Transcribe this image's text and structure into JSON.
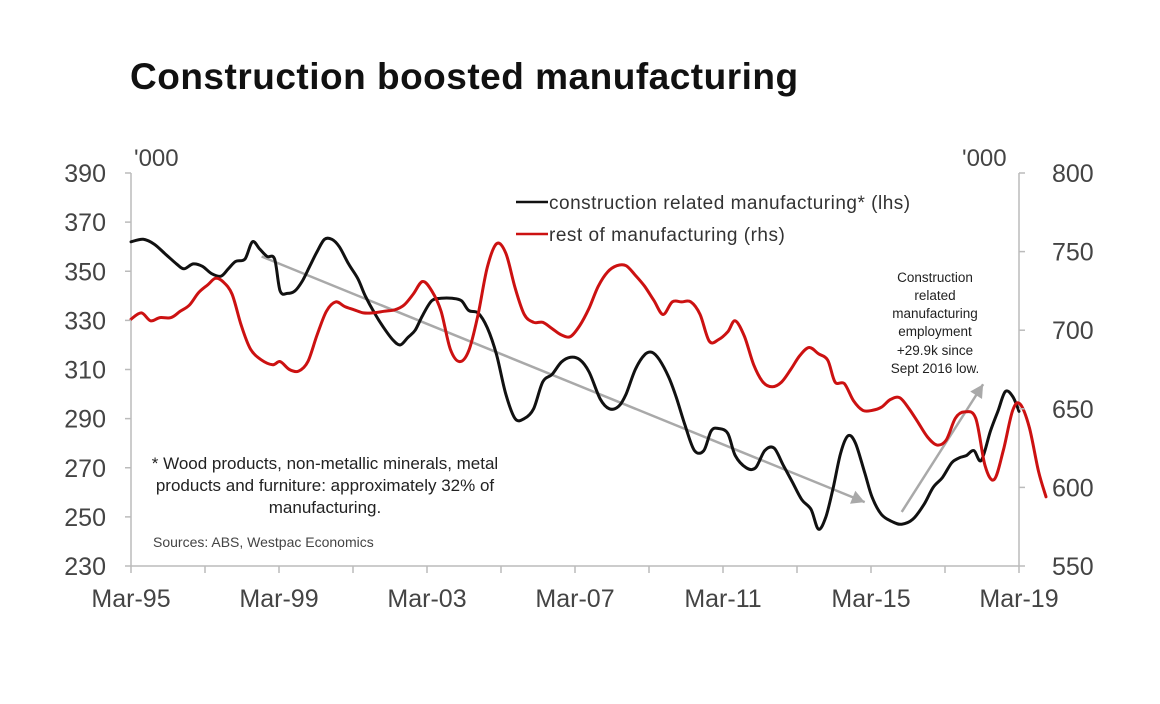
{
  "chart_data": {
    "type": "line",
    "title": "Construction boosted manufacturing",
    "y_left_unit": "'000",
    "y_right_unit": "'000",
    "ylim_left": [
      230,
      390
    ],
    "ylim_right": [
      550,
      800
    ],
    "yticks_left": [
      "230",
      "250",
      "270",
      "290",
      "310",
      "330",
      "350",
      "370",
      "390"
    ],
    "yticks_right": [
      "550",
      "600",
      "650",
      "700",
      "750",
      "800"
    ],
    "xlim": [
      1995.17,
      2019.17
    ],
    "xticks": [
      {
        "label": "Mar-95",
        "x": 1995.17
      },
      {
        "label": "Mar-99",
        "x": 1999.17
      },
      {
        "label": "Mar-03",
        "x": 2003.17
      },
      {
        "label": "Mar-07",
        "x": 2007.17
      },
      {
        "label": "Mar-11",
        "x": 2011.17
      },
      {
        "label": "Mar-15",
        "x": 2015.17
      },
      {
        "label": "Mar-19",
        "x": 2019.17
      }
    ],
    "legend_position": "top-right",
    "series": [
      {
        "name": "construction related manufacturing* (lhs)",
        "axis": "left",
        "color": "#111111",
        "points": [
          [
            1995.17,
            362
          ],
          [
            1995.5,
            363
          ],
          [
            1995.8,
            361
          ],
          [
            1996.1,
            357
          ],
          [
            1996.4,
            353
          ],
          [
            1996.6,
            351
          ],
          [
            1996.85,
            353
          ],
          [
            1997.1,
            352
          ],
          [
            1997.35,
            349
          ],
          [
            1997.6,
            348
          ],
          [
            1997.8,
            351
          ],
          [
            1998.0,
            354
          ],
          [
            1998.25,
            355
          ],
          [
            1998.45,
            362
          ],
          [
            1998.65,
            359
          ],
          [
            1998.85,
            356
          ],
          [
            1999.05,
            355
          ],
          [
            1999.2,
            342
          ],
          [
            1999.4,
            341
          ],
          [
            1999.6,
            342
          ],
          [
            1999.8,
            346
          ],
          [
            2000.0,
            352
          ],
          [
            2000.2,
            358
          ],
          [
            2000.4,
            363
          ],
          [
            2000.6,
            363
          ],
          [
            2000.8,
            360
          ],
          [
            2001.05,
            353
          ],
          [
            2001.3,
            347
          ],
          [
            2001.5,
            340
          ],
          [
            2001.75,
            333
          ],
          [
            2002.0,
            327
          ],
          [
            2002.25,
            322
          ],
          [
            2002.45,
            320
          ],
          [
            2002.65,
            323
          ],
          [
            2002.85,
            326
          ],
          [
            2003.05,
            332
          ],
          [
            2003.3,
            338
          ],
          [
            2003.55,
            339
          ],
          [
            2003.85,
            339
          ],
          [
            2004.1,
            338
          ],
          [
            2004.3,
            334
          ],
          [
            2004.55,
            333
          ],
          [
            2004.8,
            327
          ],
          [
            2005.05,
            316
          ],
          [
            2005.3,
            300
          ],
          [
            2005.55,
            290
          ],
          [
            2005.8,
            290
          ],
          [
            2006.05,
            294
          ],
          [
            2006.3,
            305
          ],
          [
            2006.55,
            308
          ],
          [
            2006.8,
            313
          ],
          [
            2007.05,
            315
          ],
          [
            2007.3,
            314
          ],
          [
            2007.55,
            309
          ],
          [
            2007.85,
            298
          ],
          [
            2008.1,
            294
          ],
          [
            2008.35,
            295
          ],
          [
            2008.55,
            300
          ],
          [
            2008.8,
            310
          ],
          [
            2009.05,
            316
          ],
          [
            2009.25,
            317
          ],
          [
            2009.45,
            314
          ],
          [
            2009.7,
            307
          ],
          [
            2009.9,
            299
          ],
          [
            2010.15,
            287
          ],
          [
            2010.4,
            277
          ],
          [
            2010.65,
            277
          ],
          [
            2010.85,
            285
          ],
          [
            2011.05,
            286
          ],
          [
            2011.3,
            284
          ],
          [
            2011.5,
            275
          ],
          [
            2011.8,
            270
          ],
          [
            2012.05,
            270
          ],
          [
            2012.3,
            277
          ],
          [
            2012.55,
            278
          ],
          [
            2012.8,
            271
          ],
          [
            2013.05,
            264
          ],
          [
            2013.3,
            257
          ],
          [
            2013.55,
            253
          ],
          [
            2013.75,
            245
          ],
          [
            2013.95,
            250
          ],
          [
            2014.15,
            262
          ],
          [
            2014.35,
            276
          ],
          [
            2014.55,
            283
          ],
          [
            2014.75,
            280
          ],
          [
            2015.0,
            268
          ],
          [
            2015.2,
            258
          ],
          [
            2015.45,
            251
          ],
          [
            2015.75,
            248
          ],
          [
            2016.0,
            247
          ],
          [
            2016.3,
            249
          ],
          [
            2016.6,
            255
          ],
          [
            2016.85,
            262
          ],
          [
            2017.1,
            266
          ],
          [
            2017.35,
            272
          ],
          [
            2017.55,
            274
          ],
          [
            2017.75,
            275
          ],
          [
            2017.95,
            277
          ],
          [
            2018.15,
            273
          ],
          [
            2018.4,
            285
          ],
          [
            2018.6,
            293
          ],
          [
            2018.8,
            301
          ],
          [
            2019.0,
            299
          ],
          [
            2019.17,
            293
          ]
        ]
      },
      {
        "name": "rest of manufacturing  (rhs)",
        "axis": "right",
        "color": "#cc1111",
        "points": [
          [
            1995.17,
            707
          ],
          [
            1995.45,
            711
          ],
          [
            1995.7,
            706
          ],
          [
            1995.95,
            708
          ],
          [
            1996.25,
            708
          ],
          [
            1996.5,
            712
          ],
          [
            1996.75,
            716
          ],
          [
            1997.0,
            724
          ],
          [
            1997.25,
            729
          ],
          [
            1997.45,
            733
          ],
          [
            1997.65,
            731
          ],
          [
            1997.9,
            723
          ],
          [
            1998.15,
            703
          ],
          [
            1998.4,
            688
          ],
          [
            1998.7,
            681
          ],
          [
            1999.0,
            678
          ],
          [
            1999.2,
            680
          ],
          [
            1999.45,
            675
          ],
          [
            1999.7,
            674
          ],
          [
            1999.95,
            680
          ],
          [
            2000.2,
            697
          ],
          [
            2000.45,
            712
          ],
          [
            2000.7,
            718
          ],
          [
            2000.95,
            715
          ],
          [
            2001.2,
            713
          ],
          [
            2001.45,
            711
          ],
          [
            2001.7,
            711
          ],
          [
            2002.0,
            712
          ],
          [
            2002.3,
            713
          ],
          [
            2002.55,
            716
          ],
          [
            2002.8,
            723
          ],
          [
            2003.05,
            731
          ],
          [
            2003.3,
            725
          ],
          [
            2003.55,
            712
          ],
          [
            2003.8,
            688
          ],
          [
            2004.05,
            680
          ],
          [
            2004.3,
            687
          ],
          [
            2004.55,
            710
          ],
          [
            2004.8,
            740
          ],
          [
            2005.05,
            755
          ],
          [
            2005.3,
            749
          ],
          [
            2005.55,
            727
          ],
          [
            2005.8,
            710
          ],
          [
            2006.05,
            705
          ],
          [
            2006.3,
            705
          ],
          [
            2006.55,
            701
          ],
          [
            2006.8,
            697
          ],
          [
            2007.05,
            696
          ],
          [
            2007.3,
            703
          ],
          [
            2007.55,
            714
          ],
          [
            2007.8,
            728
          ],
          [
            2008.05,
            737
          ],
          [
            2008.3,
            741
          ],
          [
            2008.55,
            741
          ],
          [
            2008.8,
            735
          ],
          [
            2009.05,
            728
          ],
          [
            2009.3,
            719
          ],
          [
            2009.55,
            710
          ],
          [
            2009.8,
            718
          ],
          [
            2010.05,
            718
          ],
          [
            2010.3,
            718
          ],
          [
            2010.55,
            710
          ],
          [
            2010.8,
            693
          ],
          [
            2011.05,
            694
          ],
          [
            2011.3,
            699
          ],
          [
            2011.5,
            706
          ],
          [
            2011.75,
            696
          ],
          [
            2012.0,
            678
          ],
          [
            2012.25,
            667
          ],
          [
            2012.5,
            664
          ],
          [
            2012.75,
            667
          ],
          [
            2013.0,
            675
          ],
          [
            2013.25,
            684
          ],
          [
            2013.5,
            689
          ],
          [
            2013.75,
            685
          ],
          [
            2014.0,
            681
          ],
          [
            2014.2,
            667
          ],
          [
            2014.45,
            666
          ],
          [
            2014.7,
            655
          ],
          [
            2014.95,
            649
          ],
          [
            2015.2,
            649
          ],
          [
            2015.45,
            651
          ],
          [
            2015.7,
            656
          ],
          [
            2015.95,
            657
          ],
          [
            2016.2,
            650
          ],
          [
            2016.45,
            641
          ],
          [
            2016.7,
            632
          ],
          [
            2016.95,
            627
          ],
          [
            2017.2,
            630
          ],
          [
            2017.45,
            644
          ],
          [
            2017.7,
            648
          ],
          [
            2018.0,
            644
          ],
          [
            2018.25,
            614
          ],
          [
            2018.5,
            605
          ],
          [
            2018.75,
            624
          ],
          [
            2019.0,
            649
          ],
          [
            2019.2,
            653
          ],
          [
            2019.45,
            638
          ],
          [
            2019.7,
            610
          ],
          [
            2019.9,
            594
          ]
        ]
      },
      {
        "name": "trend arrow (down)",
        "axis": "left",
        "kind": "arrow",
        "color": "#a9a9a9",
        "points": [
          [
            1998.7,
            356
          ],
          [
            2015.0,
            256
          ]
        ]
      },
      {
        "name": "trend arrow (up)",
        "axis": "left",
        "kind": "arrow",
        "color": "#a9a9a9",
        "points": [
          [
            2016.0,
            252
          ],
          [
            2018.2,
            304
          ]
        ]
      }
    ]
  },
  "annotations": {
    "note_lines": [
      "* Wood products, non-metallic minerals, metal",
      "products and furniture: approximately 32% of",
      "manufacturing."
    ],
    "source": "Sources: ABS, Westpac Economics",
    "callout_lines": [
      "Construction",
      "related",
      "manufacturing",
      "employment",
      "+29.9k since",
      "Sept 2016 low."
    ]
  }
}
